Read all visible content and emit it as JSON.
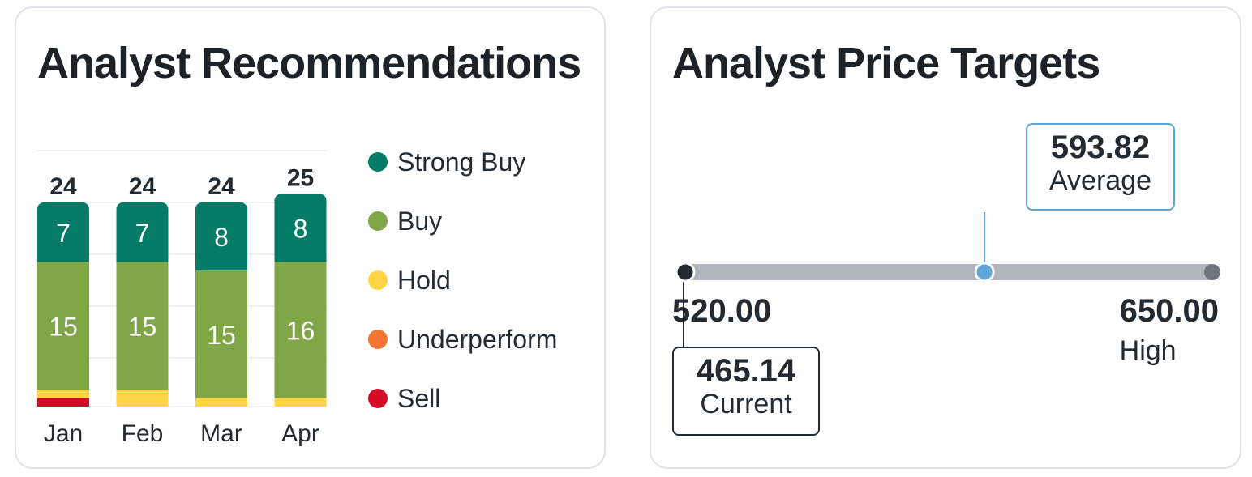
{
  "chart_data": [
    {
      "type": "bar",
      "stacked": true,
      "title": "Analyst Recommendations",
      "categories": [
        "Jan",
        "Feb",
        "Mar",
        "Apr"
      ],
      "totals": [
        24,
        24,
        24,
        25
      ],
      "series": [
        {
          "name": "Strong Buy",
          "values": [
            7,
            7,
            8,
            8
          ],
          "color": "#037b66"
        },
        {
          "name": "Buy",
          "values": [
            15,
            15,
            15,
            16
          ],
          "color": "#7fa748"
        },
        {
          "name": "Hold",
          "values": [
            1,
            2,
            1,
            1
          ],
          "color": "#ffd545"
        },
        {
          "name": "Underperform",
          "values": [
            0,
            0,
            0,
            0
          ],
          "color": "#f07733"
        },
        {
          "name": "Sell",
          "values": [
            1,
            0,
            0,
            0
          ],
          "color": "#d40a26"
        }
      ],
      "legend_position": "right"
    },
    {
      "type": "range",
      "title": "Analyst Price Targets",
      "low": {
        "value": "520.00",
        "number": 520.0,
        "label": ""
      },
      "average": {
        "value": "593.82",
        "number": 593.82,
        "label": "Average"
      },
      "high": {
        "value": "650.00",
        "number": 650.0,
        "label": "High"
      },
      "current": {
        "value": "465.14",
        "number": 465.14,
        "label": "Current"
      },
      "colors": {
        "track": "#b0b6bb",
        "low_dot": "#232a31",
        "average": "#5ea6d8",
        "high_dot": "#6e7780"
      }
    }
  ]
}
